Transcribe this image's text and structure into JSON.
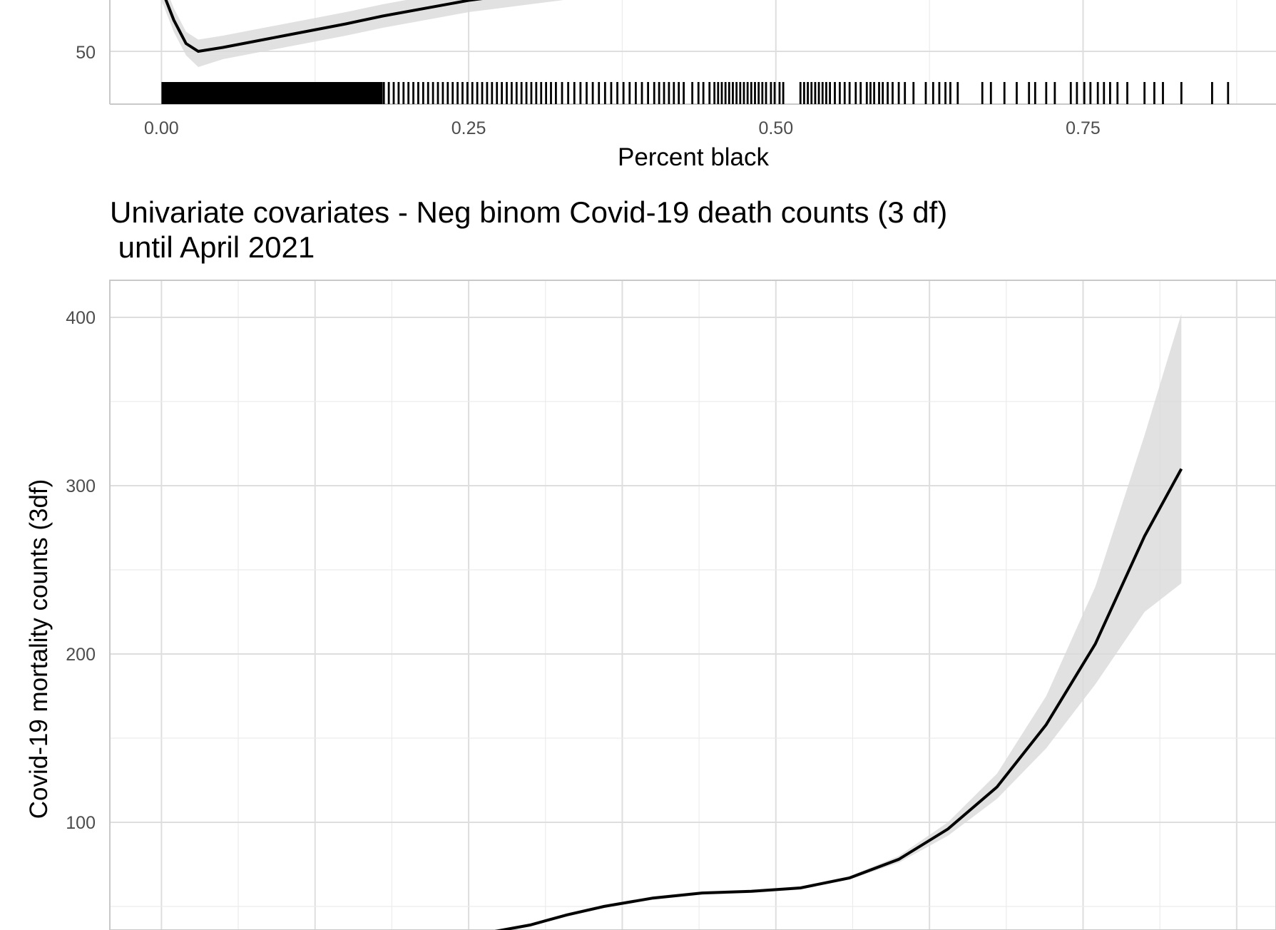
{
  "chart_data": [
    {
      "type": "line",
      "xlabel": "Percent black",
      "x_ticks": [
        "0.00",
        "0.25",
        "0.50",
        "0.75"
      ],
      "y_ticks": [
        "50"
      ],
      "xlim": [
        -0.042,
        0.907
      ],
      "curve": [
        [
          0.0,
          66
        ],
        [
          0.01,
          58
        ],
        [
          0.02,
          52
        ],
        [
          0.03,
          50
        ],
        [
          0.05,
          51
        ],
        [
          0.1,
          54
        ],
        [
          0.15,
          57
        ],
        [
          0.18,
          59
        ],
        [
          0.25,
          63
        ],
        [
          0.35,
          67
        ]
      ],
      "band_lower": [
        [
          0.0,
          63
        ],
        [
          0.01,
          55
        ],
        [
          0.02,
          49
        ],
        [
          0.03,
          46
        ],
        [
          0.05,
          48
        ],
        [
          0.1,
          51
        ],
        [
          0.15,
          54
        ],
        [
          0.18,
          56
        ],
        [
          0.25,
          60
        ],
        [
          0.35,
          64
        ]
      ],
      "band_upper": [
        [
          0.0,
          69
        ],
        [
          0.01,
          61
        ],
        [
          0.02,
          55
        ],
        [
          0.03,
          53
        ],
        [
          0.05,
          54
        ],
        [
          0.1,
          57
        ],
        [
          0.15,
          60
        ],
        [
          0.18,
          62
        ],
        [
          0.25,
          66
        ],
        [
          0.35,
          70
        ]
      ],
      "rug": [
        0.003,
        0.006,
        0.009,
        0.012,
        0.015,
        0.018,
        0.021,
        0.024,
        0.027,
        0.03,
        0.033,
        0.036,
        0.039,
        0.042,
        0.045,
        0.048,
        0.051,
        0.054,
        0.057,
        0.06,
        0.063,
        0.066,
        0.069,
        0.072,
        0.075,
        0.078,
        0.081,
        0.084,
        0.087,
        0.09,
        0.093,
        0.096,
        0.099,
        0.102,
        0.105,
        0.108,
        0.111,
        0.114,
        0.117,
        0.12,
        0.123,
        0.126,
        0.129,
        0.132,
        0.135,
        0.138,
        0.141,
        0.144,
        0.147,
        0.15,
        0.153,
        0.156,
        0.159,
        0.162,
        0.165,
        0.168,
        0.171,
        0.174,
        0.177,
        0.181,
        0.185,
        0.189,
        0.193,
        0.197,
        0.201,
        0.205,
        0.209,
        0.213,
        0.217,
        0.221,
        0.225,
        0.229,
        0.233,
        0.237,
        0.241,
        0.245,
        0.249,
        0.253,
        0.257,
        0.261,
        0.265,
        0.269,
        0.273,
        0.277,
        0.281,
        0.285,
        0.289,
        0.293,
        0.297,
        0.301,
        0.305,
        0.309,
        0.313,
        0.317,
        0.321,
        0.326,
        0.331,
        0.336,
        0.341,
        0.346,
        0.351,
        0.356,
        0.361,
        0.366,
        0.371,
        0.376,
        0.381,
        0.386,
        0.391,
        0.396,
        0.401,
        0.405,
        0.409,
        0.413,
        0.417,
        0.421,
        0.425,
        0.432,
        0.437,
        0.441,
        0.446,
        0.45,
        0.453,
        0.456,
        0.459,
        0.462,
        0.465,
        0.468,
        0.471,
        0.474,
        0.477,
        0.48,
        0.483,
        0.486,
        0.489,
        0.492,
        0.496,
        0.499,
        0.503,
        0.506,
        0.52,
        0.523,
        0.526,
        0.529,
        0.532,
        0.535,
        0.538,
        0.541,
        0.544,
        0.548,
        0.552,
        0.556,
        0.56,
        0.565,
        0.569,
        0.574,
        0.577,
        0.58,
        0.584,
        0.587,
        0.591,
        0.595,
        0.6,
        0.605,
        0.612,
        0.622,
        0.628,
        0.633,
        0.638,
        0.642,
        0.648,
        0.668,
        0.675,
        0.686,
        0.696,
        0.706,
        0.711,
        0.72,
        0.727,
        0.74,
        0.745,
        0.751,
        0.756,
        0.762,
        0.767,
        0.772,
        0.778,
        0.786,
        0.8,
        0.808,
        0.815,
        0.83,
        0.855,
        0.868
      ]
    },
    {
      "type": "line",
      "title": "Univariate covariates - Neg binom Covid-19 death counts (3 df)",
      "title_line2": " until April 2021",
      "ylabel": "Covid-19 mortality counts (3df)",
      "y_ticks": [
        100,
        200,
        300,
        400
      ],
      "xlim": [
        -0.042,
        0.907
      ],
      "ylim": [
        35,
        425
      ],
      "curve": [
        [
          0.27,
          35
        ],
        [
          0.3,
          39
        ],
        [
          0.33,
          45
        ],
        [
          0.36,
          50
        ],
        [
          0.4,
          55
        ],
        [
          0.44,
          58
        ],
        [
          0.48,
          59
        ],
        [
          0.52,
          61
        ],
        [
          0.56,
          67
        ],
        [
          0.6,
          78
        ],
        [
          0.64,
          96
        ],
        [
          0.68,
          121
        ],
        [
          0.72,
          158
        ],
        [
          0.76,
          206
        ],
        [
          0.8,
          270
        ],
        [
          0.83,
          310
        ]
      ],
      "band_lower": [
        [
          0.27,
          34
        ],
        [
          0.3,
          38
        ],
        [
          0.33,
          44
        ],
        [
          0.36,
          49
        ],
        [
          0.4,
          54
        ],
        [
          0.44,
          57
        ],
        [
          0.48,
          58
        ],
        [
          0.52,
          60
        ],
        [
          0.56,
          66
        ],
        [
          0.6,
          76
        ],
        [
          0.64,
          92
        ],
        [
          0.68,
          114
        ],
        [
          0.72,
          144
        ],
        [
          0.76,
          182
        ],
        [
          0.8,
          225
        ],
        [
          0.83,
          242
        ]
      ],
      "band_upper": [
        [
          0.27,
          36
        ],
        [
          0.3,
          40
        ],
        [
          0.33,
          46
        ],
        [
          0.36,
          51
        ],
        [
          0.4,
          56
        ],
        [
          0.44,
          59
        ],
        [
          0.48,
          60
        ],
        [
          0.52,
          62
        ],
        [
          0.56,
          68
        ],
        [
          0.6,
          80
        ],
        [
          0.64,
          100
        ],
        [
          0.68,
          129
        ],
        [
          0.72,
          175
        ],
        [
          0.76,
          240
        ],
        [
          0.8,
          330
        ],
        [
          0.83,
          402
        ]
      ]
    }
  ]
}
